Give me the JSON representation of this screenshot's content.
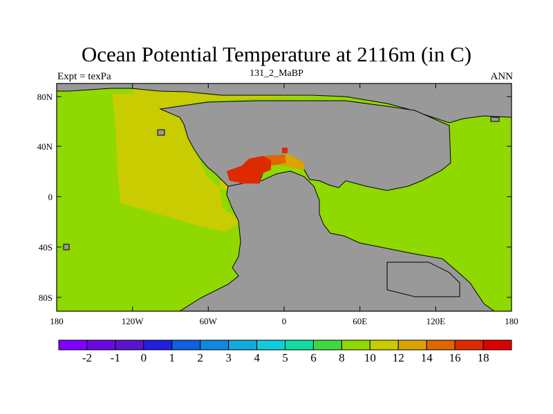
{
  "title": "Ocean Potential Temperature at 2116m (in C)",
  "subtitle_left": "Expt = texPa",
  "subtitle_center": "131_2_MaBP",
  "subtitle_right": "ANN",
  "colors": {
    "land": "#999999",
    "c10": "#8fd900",
    "c12": "#c8cc00",
    "c14": "#d9a300",
    "c16": "#e06600",
    "c18": "#dd2a00",
    "coast": "#000000"
  },
  "x_ticks": [
    "180",
    "120W",
    "60W",
    "0",
    "60E",
    "120E",
    "180"
  ],
  "y_ticks": [
    "80N",
    "40N",
    "0",
    "40S",
    "80S"
  ],
  "colorbar": {
    "colors": [
      "#8000ff",
      "#6a0ae0",
      "#5a14d0",
      "#2020e0",
      "#1060e0",
      "#1088e0",
      "#10aadd",
      "#10ccdd",
      "#10dba0",
      "#40d840",
      "#8fd900",
      "#c8cc00",
      "#d9a300",
      "#e06600",
      "#dd2a00",
      "#dd0000"
    ],
    "labels": [
      "-2",
      "-1",
      "0",
      "1",
      "2",
      "3",
      "4",
      "5",
      "6",
      "8",
      "10",
      "12",
      "14",
      "16",
      "18"
    ]
  }
}
